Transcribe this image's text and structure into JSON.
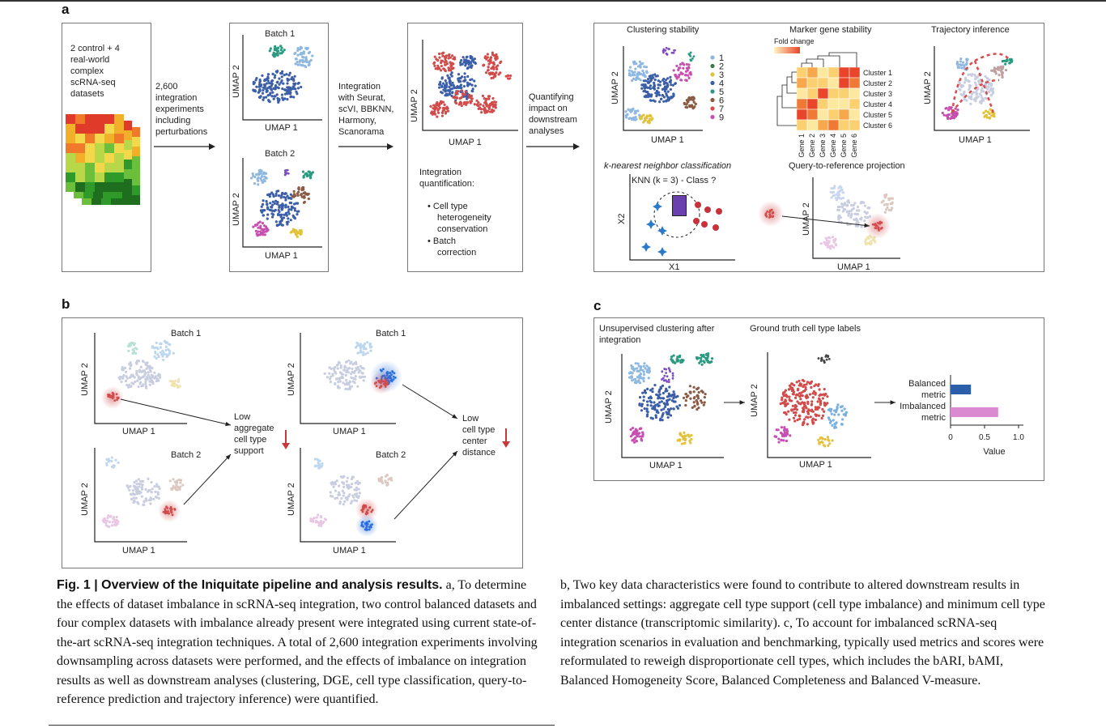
{
  "panel_a": {
    "letter": "a",
    "datasets_text": [
      "2 control + 4",
      "real-world",
      "complex",
      "scRNA-seq",
      "datasets"
    ],
    "experiments_text": [
      "2,600",
      "integration",
      "experiments",
      "including",
      "perturbations"
    ],
    "batch1": "Batch 1",
    "batch2": "Batch 2",
    "umap1": "UMAP 1",
    "umap2": "UMAP 2",
    "integration_text": [
      "Integration",
      "with Seurat,",
      "scVI, BBKNN,",
      "Harmony,",
      "Scanorama"
    ],
    "quant_title": [
      "Integration",
      "quantification:"
    ],
    "quant_items": [
      [
        "Cell type",
        "heterogeneity",
        "conservation"
      ],
      [
        "Batch",
        "correction"
      ]
    ],
    "quantifying_text": [
      "Quantifying",
      "impact on",
      "downstream",
      "analyses"
    ],
    "clustering_stability": "Clustering stability",
    "cluster_legend": [
      "1",
      "2",
      "3",
      "4",
      "5",
      "6",
      "7",
      "9"
    ],
    "marker_gene_stability": "Marker gene stability",
    "fold_change": "Fold change",
    "clusters": [
      "Cluster 1",
      "Cluster 2",
      "Cluster 3",
      "Cluster 4",
      "Cluster 5",
      "Cluster 6"
    ],
    "genes": [
      "Gene 1",
      "Gene 2",
      "Gene 3",
      "Gene 4",
      "Gene 5",
      "Gene 6"
    ],
    "trajectory_inference": "Trajectory inference",
    "knn_title": "k-nearest neighbor classification",
    "knn_label": "KNN (k = 3) - Class ?",
    "knn_q": "?",
    "x1": "X1",
    "x2": "X2",
    "query_ref": "Query-to-reference projection"
  },
  "panel_b": {
    "letter": "b",
    "batch1": "Batch 1",
    "batch2": "Batch 2",
    "umap1": "UMAP 1",
    "umap2": "UMAP 2",
    "low_support": [
      "Low",
      "aggregate",
      "cell type",
      "support"
    ],
    "low_distance": [
      "Low",
      "cell type",
      "center",
      "distance"
    ]
  },
  "panel_c": {
    "letter": "c",
    "unsupervised": [
      "Unsupervised clustering after",
      "integration"
    ],
    "ground_truth": "Ground truth cell type labels",
    "umap1": "UMAP 1",
    "umap2": "UMAP 2",
    "chart_data": {
      "type": "bar",
      "categories": [
        "Balanced metric",
        "Imbalanced metric"
      ],
      "values": [
        0.3,
        0.7
      ],
      "xlabel": "Value",
      "xticks": [
        "0",
        "0.5",
        "1.0"
      ],
      "xlim": [
        0,
        1.0
      ],
      "colors": [
        "#2b5faa",
        "#d98ad0"
      ]
    }
  },
  "caption": {
    "fig_label": "Fig. 1 | Overview of the Iniquitate pipeline and analysis results.",
    "col1": "a, To determine the effects of dataset imbalance in scRNA-seq integration, two control balanced datasets and four complex datasets with imbalance already present were integrated using current state-of-the-art scRNA-seq integration techniques. A total of 2,600 integration experiments involving downsampling across datasets were performed, and the effects of imbalance on integration results as well as downstream analyses (clustering, DGE, cell type classification, query-to-reference prediction and trajectory inference) were quantified.",
    "col2": "b, Two key data characteristics were found to contribute to altered downstream results in imbalanced settings: aggregate cell type support (cell type imbalance) and minimum cell type center distance (transcriptomic similarity). c, To account for imbalanced scRNA-seq integration scenarios in evaluation and benchmarking, typically used metrics and scores were reformulated to reweigh disproportionate cell types, which includes the bARI, bAMI, Balanced Homogeneity Score, Balanced Completeness and Balanced V-measure."
  }
}
